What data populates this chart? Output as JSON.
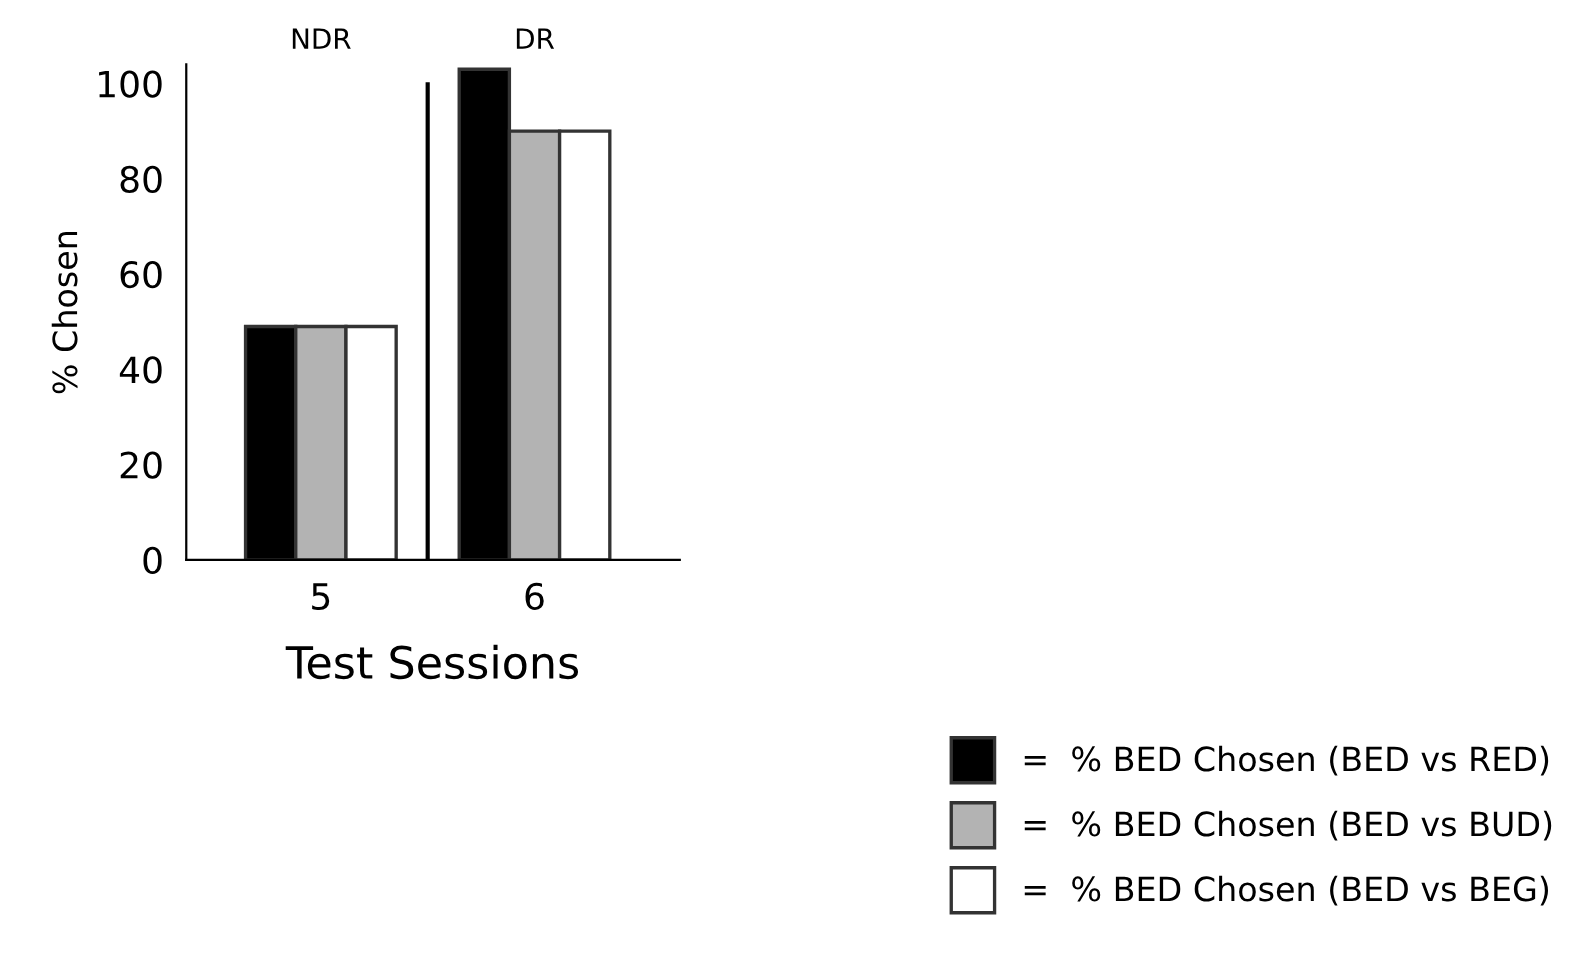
{
  "chart_data": {
    "type": "bar",
    "xlabel": "Test Sessions",
    "ylabel": "% Chosen",
    "categories": [
      "5",
      "6"
    ],
    "series": [
      {
        "name": "=  % BED Chosen (BED vs RED)",
        "color": "#000000",
        "values": [
          49,
          103
        ]
      },
      {
        "name": "=  % BED Chosen (BED vs BUD)",
        "color": "#b3b3b3",
        "values": [
          49,
          90
        ]
      },
      {
        "name": "=  % BED Chosen (BED vs BEG)",
        "color": "#ffffff",
        "values": [
          49,
          90
        ]
      }
    ],
    "ylim": [
      0,
      104
    ],
    "yticks": [
      0,
      20,
      40,
      60,
      80,
      100
    ],
    "annotations": [
      "NDR",
      "DR"
    ],
    "grid": false,
    "legend": "bottom right"
  }
}
